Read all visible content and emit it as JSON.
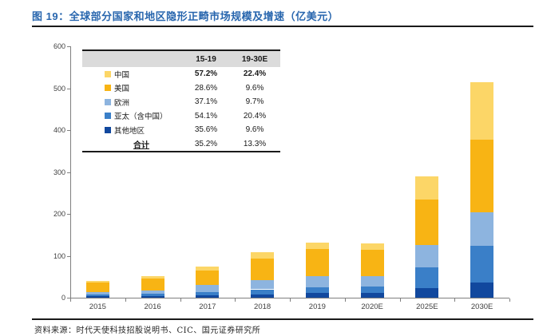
{
  "header": {
    "title": "图 19：全球部分国家和地区隐形正畸市场规模及增速（亿美元）",
    "accent_color": "#2866AE"
  },
  "footer": {
    "source": "资料来源：时代天使科技招股说明书、CIC、国元证券研究所"
  },
  "legend_table": {
    "col_headers": [
      "15-19",
      "19-30E"
    ],
    "rows": [
      {
        "label": "中国",
        "swatch": "#FCD667",
        "v1": "57.2%",
        "v2": "22.4%",
        "bold": true
      },
      {
        "label": "美国",
        "swatch": "#F8B414",
        "v1": "28.6%",
        "v2": "9.6%",
        "bold": false
      },
      {
        "label": "欧洲",
        "swatch": "#8DB4DF",
        "v1": "37.1%",
        "v2": "9.7%",
        "bold": false
      },
      {
        "label": "亚太（含中国）",
        "swatch": "#3A7FC8",
        "v1": "54.1%",
        "v2": "20.4%",
        "bold": false
      },
      {
        "label": "其他地区",
        "swatch": "#11489E",
        "v1": "35.6%",
        "v2": "9.6%",
        "bold": false
      },
      {
        "label": "合计",
        "swatch": null,
        "v1": "35.2%",
        "v2": "13.3%",
        "total": true
      }
    ]
  },
  "chart_data": {
    "type": "bar",
    "stacked": true,
    "title": "全球部分国家和地区隐形正畸市场规模（亿美元）",
    "categories": [
      "2015",
      "2016",
      "2017",
      "2018",
      "2019",
      "2020E",
      "2025E",
      "2030E"
    ],
    "series": [
      {
        "name": "其他地区",
        "color": "#11489E",
        "values": [
          3,
          4,
          5,
          7,
          11,
          12,
          23,
          36
        ]
      },
      {
        "name": "亚太（含中国）",
        "color": "#3A7FC8",
        "values": [
          4,
          5,
          8,
          13,
          13,
          14,
          50,
          88
        ]
      },
      {
        "name": "欧洲",
        "color": "#8DB4DF",
        "values": [
          6,
          8,
          18,
          21,
          27,
          25,
          52,
          80
        ]
      },
      {
        "name": "美国",
        "color": "#F8B414",
        "values": [
          24,
          29,
          33,
          52,
          65,
          63,
          109,
          173
        ]
      },
      {
        "name": "中国",
        "color": "#FCD667",
        "values": [
          3,
          6,
          11,
          15,
          15,
          16,
          55,
          137
        ]
      }
    ],
    "totals": [
      40,
      52,
      75,
      108,
      131,
      130,
      289,
      514
    ],
    "ylim": [
      0,
      600
    ],
    "y_ticks": [
      0,
      100,
      200,
      300,
      400,
      500,
      600
    ],
    "xlabel": "",
    "ylabel": "",
    "grid": false,
    "legend_position": "table-top-left"
  }
}
